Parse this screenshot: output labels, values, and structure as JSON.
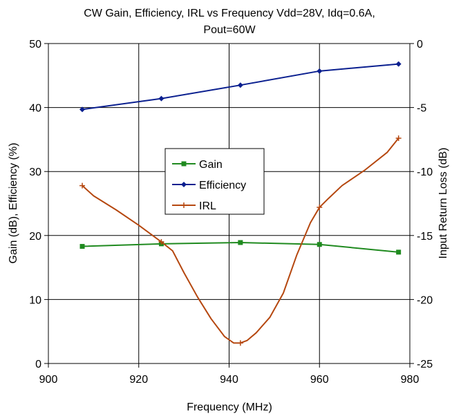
{
  "chart_data": {
    "type": "line",
    "title_line1": "CW Gain, Efficiency, IRL vs Frequency Vdd=28V, Idq=0.6A,",
    "title_line2": "Pout=60W",
    "xlabel": "Frequency (MHz)",
    "ylabel_left": "Gain (dB), Efficiency (%)",
    "ylabel_right": "Input Return Loss (dB)",
    "xlim": [
      900,
      980
    ],
    "ylim_left": [
      0,
      50
    ],
    "ylim_right": [
      -25,
      0
    ],
    "x_ticks": [
      "900",
      "920",
      "940",
      "960",
      "980"
    ],
    "y_left_ticks": [
      "0",
      "10",
      "20",
      "30",
      "40",
      "50"
    ],
    "y_right_ticks": [
      "-25",
      "-20",
      "-15",
      "-10",
      "-5",
      "0"
    ],
    "grid": true,
    "legend_position": "center",
    "series": [
      {
        "name": "Gain",
        "axis": "left",
        "color": "#1f8a1f",
        "marker": "square",
        "x": [
          907.5,
          925,
          942.5,
          960,
          977.5
        ],
        "y": [
          18.3,
          18.7,
          18.9,
          18.6,
          17.4
        ]
      },
      {
        "name": "Efficiency",
        "axis": "left",
        "color": "#0a1f8f",
        "marker": "diamond",
        "x": [
          907.5,
          925,
          942.5,
          960,
          977.5
        ],
        "y": [
          39.7,
          41.4,
          43.5,
          45.7,
          46.8
        ]
      },
      {
        "name": "IRL",
        "axis": "right",
        "color": "#b5470f",
        "marker": "plus",
        "x": [
          907.5,
          910,
          915,
          920,
          925,
          927.5,
          930,
          933,
          936,
          939,
          941,
          942.5,
          944,
          946,
          949,
          952,
          955,
          958,
          960,
          962,
          965,
          970,
          975,
          977.5
        ],
        "y": [
          -11.1,
          -11.9,
          -13.0,
          -14.2,
          -15.5,
          -16.2,
          -17.9,
          -19.8,
          -21.5,
          -22.9,
          -23.4,
          -23.4,
          -23.2,
          -22.6,
          -21.4,
          -19.5,
          -16.5,
          -14.0,
          -12.8,
          -12.1,
          -11.1,
          -9.9,
          -8.5,
          -7.4
        ]
      }
    ]
  }
}
